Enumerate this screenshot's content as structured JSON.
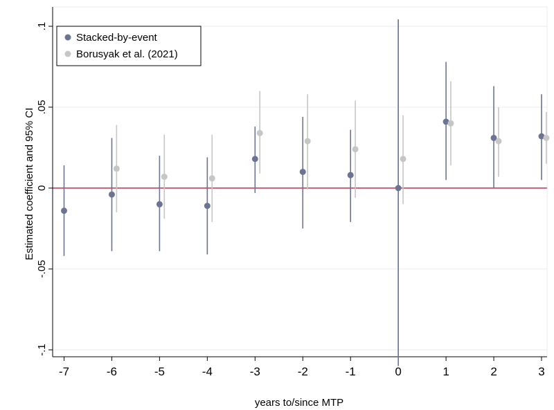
{
  "chart_data": {
    "type": "scatter",
    "xlabel": "years to/since MTP",
    "ylabel": "Estimated coefficient and 95% CI",
    "xlim": [
      -7.2,
      3.2
    ],
    "ylim": [
      -0.1,
      0.1
    ],
    "x_ticks": [
      -7,
      -6,
      -5,
      -4,
      -3,
      -2,
      -1,
      0,
      1,
      2,
      3
    ],
    "x_tick_labels": [
      "-7",
      "-6",
      "-5",
      "-4",
      "-3",
      "-2",
      "-1",
      "0",
      "1",
      "2",
      "3"
    ],
    "y_ticks": [
      -0.1,
      -0.05,
      0,
      0.05,
      0.1
    ],
    "y_tick_labels": [
      "-.1",
      "-.05",
      "0",
      ".05",
      ".1"
    ],
    "grid": true,
    "legend_position": "top-left",
    "reference_lines": {
      "horizontal": {
        "y": 0,
        "color": "#c0304e"
      },
      "vertical": {
        "x": 0,
        "color": "#9a9a9a"
      }
    },
    "series": [
      {
        "name": "Stacked-by-event",
        "color": "#6b7591",
        "points": [
          {
            "x": -7,
            "y": -0.014,
            "lo": -0.042,
            "hi": 0.014
          },
          {
            "x": -6,
            "y": -0.004,
            "lo": -0.039,
            "hi": 0.031
          },
          {
            "x": -5,
            "y": -0.01,
            "lo": -0.039,
            "hi": 0.02
          },
          {
            "x": -4,
            "y": -0.011,
            "lo": -0.041,
            "hi": 0.019
          },
          {
            "x": -3,
            "y": 0.018,
            "lo": -0.003,
            "hi": 0.038
          },
          {
            "x": -2,
            "y": 0.01,
            "lo": -0.025,
            "hi": 0.044
          },
          {
            "x": -1,
            "y": 0.008,
            "lo": -0.021,
            "hi": 0.036
          },
          {
            "x": 0,
            "y": 0.0,
            "lo": -0.11,
            "hi": 0.105
          },
          {
            "x": 1,
            "y": 0.041,
            "lo": 0.005,
            "hi": 0.078
          },
          {
            "x": 2,
            "y": 0.031,
            "lo": 0.0,
            "hi": 0.063
          },
          {
            "x": 3,
            "y": 0.032,
            "lo": 0.005,
            "hi": 0.058
          }
        ]
      },
      {
        "name": "Borusyak et al. (2021)",
        "color": "#c6c6c6",
        "offset": 0.1,
        "points": [
          {
            "x": -6,
            "y": 0.012,
            "lo": -0.015,
            "hi": 0.039
          },
          {
            "x": -5,
            "y": 0.007,
            "lo": -0.019,
            "hi": 0.033
          },
          {
            "x": -4,
            "y": 0.006,
            "lo": -0.021,
            "hi": 0.033
          },
          {
            "x": -3,
            "y": 0.034,
            "lo": 0.009,
            "hi": 0.06
          },
          {
            "x": -2,
            "y": 0.029,
            "lo": -0.001,
            "hi": 0.058
          },
          {
            "x": -1,
            "y": 0.024,
            "lo": -0.006,
            "hi": 0.054
          },
          {
            "x": 0,
            "y": 0.018,
            "lo": -0.01,
            "hi": 0.045
          },
          {
            "x": 1,
            "y": 0.04,
            "lo": 0.014,
            "hi": 0.066
          },
          {
            "x": 2,
            "y": 0.029,
            "lo": 0.007,
            "hi": 0.05
          },
          {
            "x": 3,
            "y": 0.031,
            "lo": 0.015,
            "hi": 0.047
          }
        ]
      }
    ]
  }
}
